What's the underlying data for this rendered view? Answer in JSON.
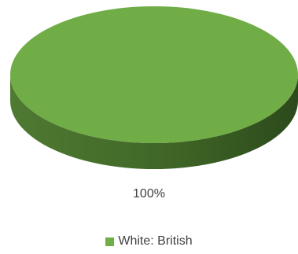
{
  "chart_data": {
    "type": "pie",
    "style": "3d",
    "categories": [
      "White: British"
    ],
    "values": [
      100
    ],
    "data_labels": [
      "100%"
    ],
    "colors": [
      "#70ad47"
    ],
    "legend_position": "bottom",
    "title": ""
  },
  "legend": {
    "items": [
      {
        "label": "White: British",
        "color": "#70ad47"
      }
    ]
  }
}
